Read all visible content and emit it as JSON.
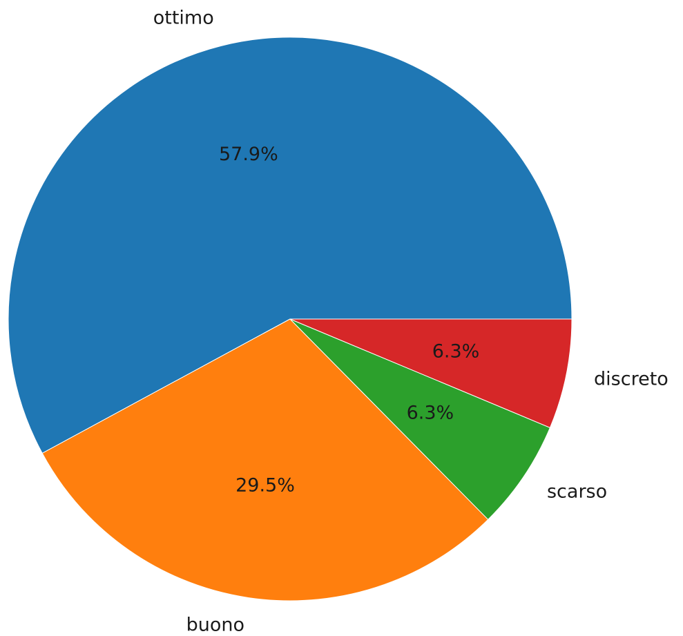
{
  "chart_data": {
    "type": "pie",
    "start_angle_deg": 0,
    "direction": "counterclockwise",
    "slices": [
      {
        "label": "ottimo",
        "value": 57.9,
        "pct_label": "57.9%",
        "color": "#1f77b4"
      },
      {
        "label": "buono",
        "value": 29.5,
        "pct_label": "29.5%",
        "color": "#ff7f0e"
      },
      {
        "label": "scarso",
        "value": 6.3,
        "pct_label": "6.3%",
        "color": "#2ca02c"
      },
      {
        "label": "discreto",
        "value": 6.3,
        "pct_label": "6.3%",
        "color": "#d62728"
      }
    ]
  }
}
